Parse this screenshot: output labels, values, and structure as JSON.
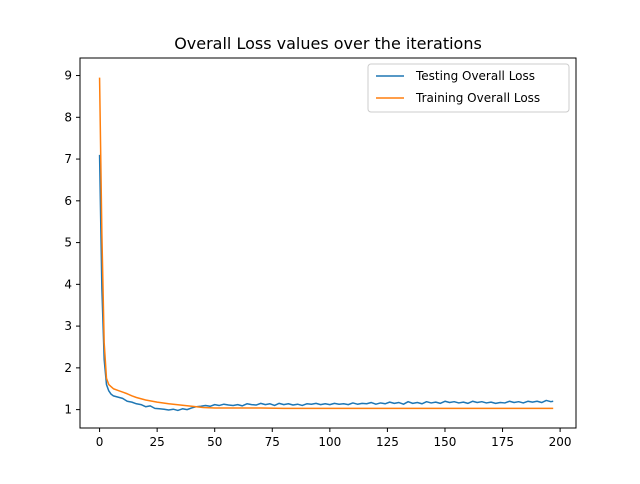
{
  "chart_data": {
    "type": "line",
    "title": "Overall Loss values over the iterations",
    "xlabel": "",
    "ylabel": "",
    "xlim": [
      -8.5,
      206.9
    ],
    "ylim": [
      0.56,
      9.42
    ],
    "xticks": [
      0,
      25,
      50,
      75,
      100,
      125,
      150,
      175,
      200
    ],
    "xtick_labels": [
      "0",
      "25",
      "50",
      "75",
      "100",
      "125",
      "150",
      "175",
      "200"
    ],
    "yticks": [
      1,
      2,
      3,
      4,
      5,
      6,
      7,
      8,
      9
    ],
    "ytick_labels": [
      "1",
      "2",
      "3",
      "4",
      "5",
      "6",
      "7",
      "8",
      "9"
    ],
    "grid": false,
    "legend_position": "upper right",
    "series": [
      {
        "name": "Testing Overall Loss",
        "color": "#1f77b4",
        "x": [
          0,
          1,
          2,
          3,
          4,
          5,
          6,
          8,
          10,
          12,
          14,
          16,
          18,
          20,
          22,
          24,
          26,
          28,
          30,
          32,
          34,
          36,
          38,
          40,
          42,
          44,
          46,
          48,
          50,
          52,
          54,
          56,
          58,
          60,
          62,
          64,
          66,
          68,
          70,
          72,
          74,
          76,
          78,
          80,
          82,
          84,
          86,
          88,
          90,
          92,
          94,
          96,
          98,
          100,
          102,
          104,
          106,
          108,
          110,
          112,
          114,
          116,
          118,
          120,
          122,
          124,
          126,
          128,
          130,
          132,
          134,
          136,
          138,
          140,
          142,
          144,
          146,
          148,
          150,
          152,
          154,
          156,
          158,
          160,
          162,
          164,
          166,
          168,
          170,
          172,
          174,
          176,
          178,
          180,
          182,
          184,
          186,
          188,
          190,
          192,
          194,
          196,
          197
        ],
        "values": [
          7.1,
          3.9,
          2.2,
          1.6,
          1.45,
          1.37,
          1.33,
          1.3,
          1.27,
          1.2,
          1.18,
          1.14,
          1.12,
          1.07,
          1.09,
          1.03,
          1.02,
          1.01,
          0.99,
          1.01,
          0.98,
          1.02,
          1.0,
          1.04,
          1.07,
          1.08,
          1.1,
          1.08,
          1.12,
          1.1,
          1.13,
          1.11,
          1.1,
          1.12,
          1.09,
          1.14,
          1.12,
          1.11,
          1.15,
          1.12,
          1.14,
          1.1,
          1.15,
          1.12,
          1.14,
          1.11,
          1.13,
          1.1,
          1.14,
          1.13,
          1.15,
          1.12,
          1.14,
          1.12,
          1.15,
          1.13,
          1.14,
          1.12,
          1.16,
          1.13,
          1.15,
          1.14,
          1.17,
          1.13,
          1.16,
          1.14,
          1.18,
          1.15,
          1.17,
          1.13,
          1.19,
          1.15,
          1.17,
          1.14,
          1.19,
          1.16,
          1.18,
          1.15,
          1.2,
          1.17,
          1.19,
          1.16,
          1.18,
          1.15,
          1.2,
          1.17,
          1.19,
          1.16,
          1.18,
          1.15,
          1.17,
          1.16,
          1.2,
          1.17,
          1.19,
          1.16,
          1.2,
          1.18,
          1.2,
          1.17,
          1.22,
          1.19,
          1.2
        ]
      },
      {
        "name": "Training Overall Loss",
        "color": "#ff7f0e",
        "x": [
          0,
          1,
          2,
          3,
          4,
          5,
          6,
          8,
          10,
          12,
          14,
          16,
          18,
          20,
          25,
          30,
          35,
          40,
          45,
          50,
          60,
          70,
          80,
          90,
          100,
          110,
          120,
          130,
          140,
          150,
          160,
          170,
          180,
          190,
          197
        ],
        "values": [
          8.95,
          5.2,
          2.6,
          1.75,
          1.6,
          1.55,
          1.5,
          1.46,
          1.42,
          1.38,
          1.33,
          1.29,
          1.26,
          1.23,
          1.18,
          1.14,
          1.11,
          1.08,
          1.05,
          1.04,
          1.04,
          1.04,
          1.03,
          1.03,
          1.03,
          1.03,
          1.03,
          1.03,
          1.03,
          1.03,
          1.03,
          1.03,
          1.03,
          1.03,
          1.03
        ]
      }
    ]
  }
}
